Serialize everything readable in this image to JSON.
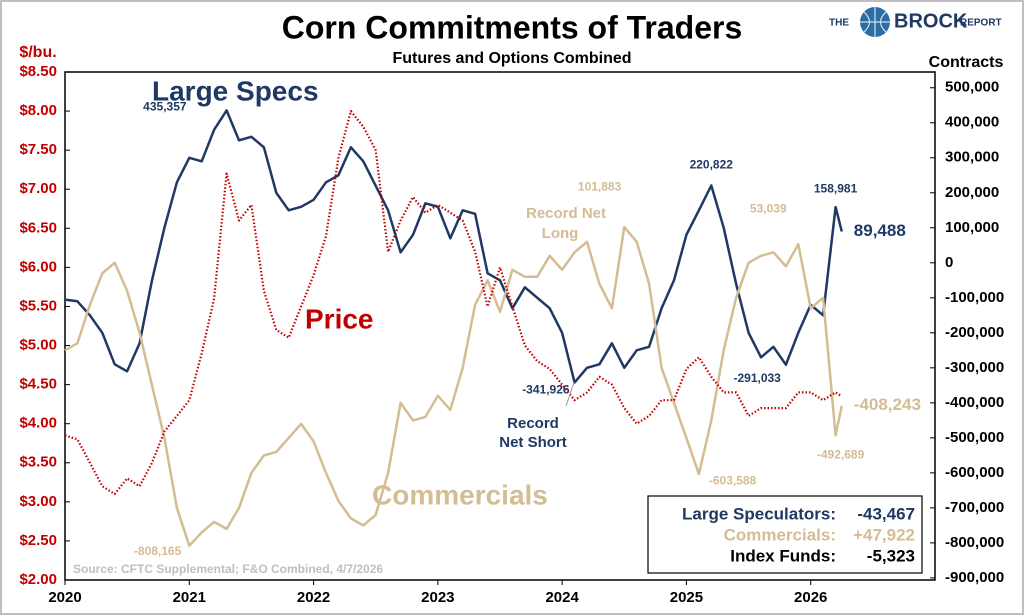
{
  "chart_data": {
    "type": "line",
    "title": "Corn Commitments of Traders",
    "subtitle": "Futures and Options Combined",
    "ylabel": "$/bu.",
    "y2label": "Contracts",
    "source": "Source: CFTC Supplemental;  F&O Combined, 4/7/2026",
    "logo": [
      "THE",
      "BROCK",
      "REPORT"
    ],
    "x": [
      2020,
      2020.1,
      2020.2,
      2020.3,
      2020.4,
      2020.5,
      2020.6,
      2020.7,
      2020.8,
      2020.9,
      2021,
      2021.1,
      2021.2,
      2021.3,
      2021.4,
      2021.5,
      2021.6,
      2021.7,
      2021.8,
      2021.9,
      2022,
      2022.1,
      2022.2,
      2022.3,
      2022.4,
      2022.5,
      2022.6,
      2022.7,
      2022.8,
      2022.9,
      2023,
      2023.1,
      2023.2,
      2023.3,
      2023.4,
      2023.5,
      2023.6,
      2023.7,
      2023.8,
      2023.9,
      2024,
      2024.1,
      2024.2,
      2024.3,
      2024.4,
      2024.5,
      2024.6,
      2024.7,
      2024.8,
      2024.9,
      2025,
      2025.1,
      2025.2,
      2025.3,
      2025.4,
      2025.5,
      2025.6,
      2025.7,
      2025.8,
      2025.9,
      2026,
      2026.1,
      2026.2,
      2026.25
    ],
    "xlim": [
      2020,
      2027
    ],
    "xticks": [
      2020,
      2021,
      2022,
      2023,
      2024,
      2025,
      2026
    ],
    "ylim": [
      2,
      8.5
    ],
    "yticks": [
      {
        "value": 2,
        "label": "$2.00"
      },
      {
        "value": 2.5,
        "label": "$2.50"
      },
      {
        "value": 3,
        "label": "$3.00"
      },
      {
        "value": 3.5,
        "label": "$3.50"
      },
      {
        "value": 4,
        "label": "$4.00"
      },
      {
        "value": 4.5,
        "label": "$4.50"
      },
      {
        "value": 5,
        "label": "$5.00"
      },
      {
        "value": 5.5,
        "label": "$5.50"
      },
      {
        "value": 6,
        "label": "$6.00"
      },
      {
        "value": 6.5,
        "label": "$6.50"
      },
      {
        "value": 7,
        "label": "$7.00"
      },
      {
        "value": 7.5,
        "label": "$7.50"
      },
      {
        "value": 8,
        "label": "$8.00"
      },
      {
        "value": 8.5,
        "label": "$8.50"
      }
    ],
    "y2lim": [
      -906000,
      545000
    ],
    "y2ticks": [
      {
        "value": -900000,
        "label": "-900,000"
      },
      {
        "value": -800000,
        "label": "-800,000"
      },
      {
        "value": -700000,
        "label": "-700,000"
      },
      {
        "value": -600000,
        "label": "-600,000"
      },
      {
        "value": -500000,
        "label": "-500,000"
      },
      {
        "value": -400000,
        "label": "-400,000"
      },
      {
        "value": -300000,
        "label": "-300,000"
      },
      {
        "value": -200000,
        "label": "-200,000"
      },
      {
        "value": -100000,
        "label": "-100,000"
      },
      0,
      {
        "value": 100000,
        "label": "100,000"
      },
      {
        "value": 200000,
        "label": "200,000"
      },
      {
        "value": 300000,
        "label": "300,000"
      },
      {
        "value": 400000,
        "label": "400,000"
      },
      {
        "value": 500000,
        "label": "500,000"
      }
    ],
    "series": [
      {
        "name": "Large Specs",
        "color": "#1f3864",
        "axis": "y2",
        "dash": "solid",
        "values": [
          -105000,
          -110000,
          -150000,
          -200000,
          -290000,
          -310000,
          -230000,
          -50000,
          100000,
          230000,
          300000,
          290000,
          380000,
          435357,
          350000,
          360000,
          330000,
          200000,
          150000,
          160000,
          180000,
          230000,
          250000,
          330000,
          290000,
          220000,
          150000,
          30000,
          80000,
          170000,
          160000,
          70000,
          150000,
          140000,
          -30000,
          -50000,
          -130000,
          -70000,
          -100000,
          -130000,
          -200000,
          -341926,
          -300000,
          -290000,
          -230000,
          -300000,
          -250000,
          -240000,
          -130000,
          -50000,
          80000,
          150000,
          220822,
          100000,
          -60000,
          -200000,
          -270000,
          -240000,
          -291033,
          -200000,
          -120000,
          -150000,
          158981,
          89488
        ],
        "value_labels": [
          null,
          null,
          null,
          null,
          null,
          null,
          null,
          null,
          null,
          null,
          null,
          null,
          null,
          "435,357",
          null,
          null,
          null,
          null,
          null,
          null,
          null,
          null,
          null,
          null,
          null,
          null,
          null,
          null,
          null,
          null,
          null,
          null,
          null,
          null,
          null,
          null,
          null,
          null,
          null,
          null,
          null,
          "-341,926",
          null,
          null,
          null,
          null,
          null,
          null,
          null,
          null,
          null,
          null,
          "220,822",
          null,
          null,
          null,
          null,
          null,
          "-291,033",
          null,
          null,
          null,
          "158,981",
          "89,488"
        ]
      },
      {
        "name": "Commercials",
        "color": "#d4bc93",
        "axis": "y2",
        "dash": "solid",
        "values": [
          -250000,
          -230000,
          -120000,
          -30000,
          0,
          -80000,
          -200000,
          -350000,
          -500000,
          -700000,
          -808165,
          -770000,
          -740000,
          -760000,
          -700000,
          -600000,
          -550000,
          -540000,
          -500000,
          -460000,
          -510000,
          -600000,
          -680000,
          -730000,
          -750000,
          -720000,
          -600000,
          -400000,
          -450000,
          -440000,
          -380000,
          -420000,
          -300000,
          -120000,
          -50000,
          -140000,
          -20000,
          -40000,
          -40000,
          20000,
          -20000,
          30000,
          60000,
          -60000,
          -130000,
          101883,
          60000,
          -60000,
          -300000,
          -400000,
          -500000,
          -603588,
          -450000,
          -250000,
          -100000,
          0,
          20000,
          30000,
          -10000,
          53039,
          -130000,
          -100000,
          -492689,
          -408243
        ],
        "value_labels": [
          null,
          null,
          null,
          null,
          null,
          null,
          null,
          null,
          null,
          null,
          "-808,165",
          null,
          null,
          null,
          null,
          null,
          null,
          null,
          null,
          null,
          null,
          null,
          null,
          null,
          null,
          null,
          null,
          null,
          null,
          null,
          null,
          null,
          null,
          null,
          null,
          null,
          null,
          null,
          null,
          null,
          null,
          null,
          null,
          null,
          null,
          "101,883",
          null,
          null,
          null,
          null,
          null,
          "-603,588",
          null,
          null,
          null,
          null,
          null,
          null,
          null,
          "53,039",
          null,
          null,
          "-492,689",
          "-408,243"
        ]
      },
      {
        "name": "Price",
        "color": "#c00000",
        "axis": "y",
        "dash": "dotted",
        "values": [
          3.85,
          3.8,
          3.5,
          3.2,
          3.1,
          3.3,
          3.2,
          3.5,
          3.9,
          4.1,
          4.3,
          4.9,
          5.6,
          7.2,
          6.6,
          6.8,
          5.7,
          5.2,
          5.1,
          5.5,
          5.9,
          6.4,
          7.4,
          8,
          7.8,
          7.5,
          6.2,
          6.6,
          6.9,
          6.7,
          6.8,
          6.7,
          6.6,
          6.2,
          5.5,
          6,
          5.5,
          5,
          4.8,
          4.7,
          4.5,
          4.3,
          4.4,
          4.6,
          4.5,
          4.2,
          4,
          4.1,
          4.3,
          4.3,
          4.7,
          4.85,
          4.6,
          4.4,
          4.4,
          4.1,
          4.2,
          4.2,
          4.2,
          4.4,
          4.4,
          4.3,
          4.4,
          4.35
        ]
      }
    ],
    "annotations": [
      "Record",
      "Net Short",
      "Record Net",
      "Long"
    ],
    "change_table": [
      [
        "Large Speculators:",
        "-43,467"
      ],
      [
        "Commercials:",
        "+47,922"
      ],
      [
        "Index Funds:",
        "-5,323"
      ]
    ]
  }
}
